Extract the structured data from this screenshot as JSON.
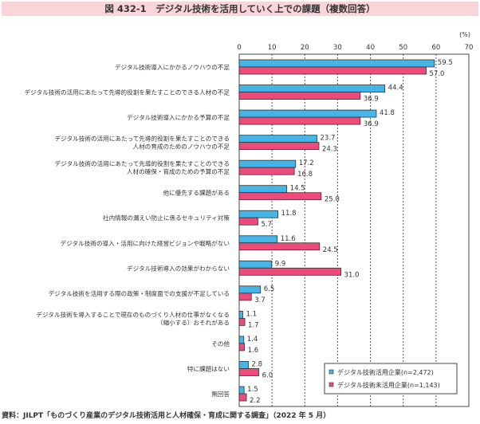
{
  "title": "図 432-1　デジタル技術を活用していく上での課題（複数回答）",
  "source": "資料：JILPT「ものづくり産業のデジタル技術活用と人材確保・育成に関する調査」（2022 年 5 月）",
  "chart_data": {
    "type": "bar",
    "orientation": "horizontal",
    "title": "図 432-1　デジタル技術を活用していく上での課題（複数回答）",
    "unit": "(%)",
    "xlim": [
      0,
      70
    ],
    "ticks": [
      "0",
      "10",
      "20",
      "30",
      "40",
      "50",
      "60",
      "70"
    ],
    "grid": true,
    "legend_position": "bottom-right",
    "categories": [
      [
        "デジタル技術導入にかかるノウハウの不足"
      ],
      [
        "デジタル技術の活用にあたって先導的役割を果たすことのできる人材の不足"
      ],
      [
        "デジタル技術導入にかかる予算の不足"
      ],
      [
        "デジタル技術の活用にあたって先導的役割を果たすことのできる",
        "人材の育成のためのノウハウの不足"
      ],
      [
        "デジタル技術の活用にあたって先導的役割を果たすことのできる",
        "人材の確保・育成のための予算の不足"
      ],
      [
        "他に優先する課題がある"
      ],
      [
        "社内情報の漏えい防止に係るセキュリティ対策"
      ],
      [
        "デジタル技術の導入・活用に向けた経営ビジョンや戦略がない"
      ],
      [
        "デジタル技術導入の効果がわからない"
      ],
      [
        "デジタル技術を活用する際の政策・制度面での支援が不足している"
      ],
      [
        "デジタル技術を導入することで現在のものづくり人材の仕事がなくなる",
        "（縮小する）おそれがある"
      ],
      [
        "その他"
      ],
      [
        "特に課題はない"
      ],
      [
        "無回答"
      ]
    ],
    "series": [
      {
        "name": "デジタル技術活用企業(n=2,472)",
        "color": "#45b4e6",
        "values": [
          59.5,
          44.4,
          41.8,
          23.7,
          17.2,
          14.5,
          11.8,
          11.6,
          9.9,
          6.5,
          1.1,
          1.4,
          2.8,
          1.5
        ]
      },
      {
        "name": "デジタル技術未活用企業(n=1,143)",
        "color": "#ee4a7a",
        "values": [
          57.0,
          36.9,
          36.9,
          24.3,
          16.8,
          25.0,
          5.7,
          24.5,
          31.0,
          3.7,
          1.7,
          1.6,
          6.0,
          2.2
        ]
      }
    ]
  }
}
